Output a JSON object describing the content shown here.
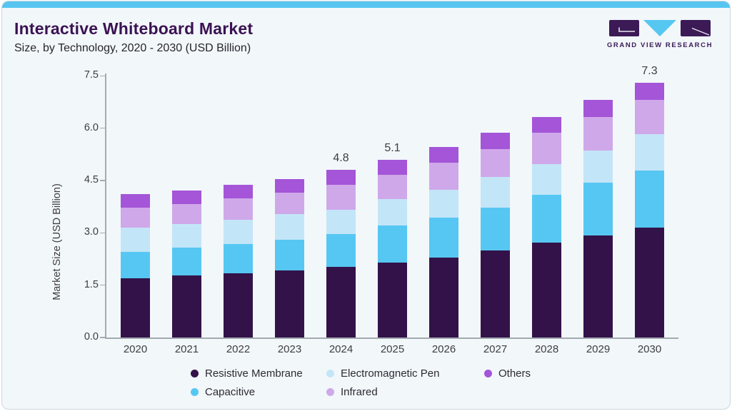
{
  "header": {
    "title": "Interactive Whiteboard Market",
    "subtitle": "Size, by Technology, 2020 - 2030 (USD Billion)"
  },
  "logo": {
    "text": "GRAND VIEW RESEARCH",
    "purple": "#3b1a55",
    "cyan": "#56c7f0"
  },
  "colors": {
    "card_background": "#f2f7fa",
    "card_border": "#ccd6dd",
    "top_accent_bar": "#57c5f0",
    "title_text": "#3a1253",
    "axis": "#a3abb1",
    "axis_text": "#3d3d42"
  },
  "chart_data": {
    "type": "bar",
    "stacked": true,
    "title": "Interactive Whiteboard Market Size, by Technology, 2020 - 2030 (USD Billion)",
    "categories": [
      "2020",
      "2021",
      "2022",
      "2023",
      "2024",
      "2025",
      "2026",
      "2027",
      "2028",
      "2029",
      "2030"
    ],
    "series": [
      {
        "name": "Resistive Membrane",
        "color": "#331249",
        "values": [
          1.7,
          1.77,
          1.85,
          1.93,
          2.03,
          2.15,
          2.3,
          2.49,
          2.71,
          2.92,
          3.15
        ]
      },
      {
        "name": "Capacitive",
        "color": "#56c7f2",
        "values": [
          0.76,
          0.81,
          0.82,
          0.88,
          0.93,
          1.06,
          1.14,
          1.23,
          1.37,
          1.51,
          1.64
        ]
      },
      {
        "name": "Electromagnetic Pen",
        "color": "#c3e5f8",
        "values": [
          0.69,
          0.67,
          0.71,
          0.73,
          0.71,
          0.75,
          0.8,
          0.89,
          0.88,
          0.93,
          1.03
        ]
      },
      {
        "name": "Infrared",
        "color": "#cfa8e9",
        "values": [
          0.58,
          0.57,
          0.6,
          0.62,
          0.71,
          0.71,
          0.78,
          0.79,
          0.9,
          0.95,
          0.99
        ]
      },
      {
        "name": "Others",
        "color": "#a455d8",
        "values": [
          0.39,
          0.4,
          0.4,
          0.39,
          0.42,
          0.43,
          0.43,
          0.46,
          0.45,
          0.5,
          0.49
        ]
      }
    ],
    "totals": [
      4.12,
      4.22,
      4.38,
      4.55,
      4.8,
      5.1,
      5.45,
      5.86,
      6.31,
      6.81,
      7.3
    ],
    "bar_labels": {
      "2024": "4.8",
      "2025": "5.1",
      "2030": "7.3"
    },
    "xlabel": "",
    "ylabel": "Market Size (USD Billion)",
    "yticks": [
      "0.0",
      "1.5",
      "3.0",
      "4.5",
      "6.0",
      "7.5"
    ],
    "ylim": [
      0,
      7.5
    ],
    "grid": false,
    "legend_position": "bottom",
    "legend_display_order": [
      "Resistive Membrane",
      "Electromagnetic Pen",
      "Others",
      "Capacitive",
      "Infrared"
    ]
  }
}
